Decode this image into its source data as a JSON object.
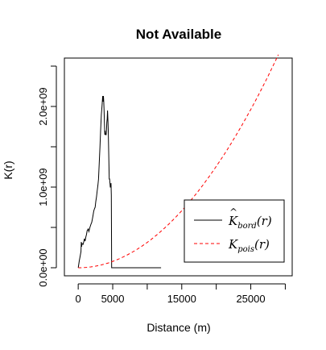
{
  "chart_data": {
    "type": "line",
    "title": "Not Available",
    "xlabel": "Distance (m)",
    "ylabel": "K(r)",
    "xlim": [
      -2000,
      31000
    ],
    "ylim": [
      -100000000,
      2600000000
    ],
    "x_ticks": [
      {
        "value": 0,
        "label": "0"
      },
      {
        "value": 5000,
        "label": "5000"
      },
      {
        "value": 15000,
        "label": "15000"
      },
      {
        "value": 25000,
        "label": "25000"
      }
    ],
    "x_tick_marks": [
      0,
      5000,
      10000,
      15000,
      20000,
      25000,
      30000
    ],
    "y_ticks": [
      {
        "value": 0,
        "label": "0.0e+00"
      },
      {
        "value": 1000000000,
        "label": "1.0e+09"
      },
      {
        "value": 2000000000,
        "label": "2.0e+09"
      }
    ],
    "y_tick_marks": [
      0,
      500000000,
      1000000000,
      1500000000,
      2000000000,
      2500000000
    ],
    "grid": false,
    "legend_position": "bottom-right",
    "series": [
      {
        "name": "K_bord(r)",
        "legend_main": "K",
        "legend_sub": "bord",
        "legend_arg": "(r)",
        "color": "#000000",
        "dash": "solid",
        "x": [
          0,
          150,
          300,
          400,
          450,
          500,
          550,
          700,
          800,
          900,
          1000,
          1100,
          1200,
          1300,
          1450,
          1550,
          1700,
          1850,
          1950,
          2050,
          2150,
          2250,
          2350,
          2450,
          2550,
          2650,
          2750,
          2850,
          2950,
          3050,
          3150,
          3250,
          3350,
          3450,
          3550,
          3600,
          3650,
          3700,
          3750,
          3800,
          3850,
          3900,
          3950,
          4000,
          4050,
          4100,
          4150,
          4200,
          4250,
          4300,
          4350,
          4400,
          4450,
          4500,
          4550,
          4600,
          4650,
          4700,
          4750,
          4800,
          4850,
          4950,
          12000
        ],
        "values": [
          0,
          80000000,
          150000000,
          200000000,
          320000000,
          260000000,
          300000000,
          290000000,
          320000000,
          360000000,
          330000000,
          380000000,
          410000000,
          460000000,
          480000000,
          450000000,
          500000000,
          540000000,
          560000000,
          600000000,
          650000000,
          700000000,
          730000000,
          750000000,
          820000000,
          880000000,
          950000000,
          1020000000,
          1100000000,
          1300000000,
          1500000000,
          1700000000,
          1900000000,
          2000000000,
          2130000000,
          2060000000,
          2130000000,
          2060000000,
          1950000000,
          1800000000,
          1650000000,
          1700000000,
          1650000000,
          1650000000,
          1650000000,
          1700000000,
          1800000000,
          1850000000,
          1950000000,
          1850000000,
          1700000000,
          1500000000,
          1300000000,
          1100000000,
          1100000000,
          1050000000,
          1000000000,
          1000000000,
          1050000000,
          900000000,
          0,
          0,
          0
        ]
      },
      {
        "name": "K_pois(r)",
        "legend_main": "K",
        "legend_sub": "pois",
        "legend_arg": "(r)",
        "color": "#ff0000",
        "dash": "dashed",
        "function": "pi*r^2",
        "x_range": [
          0,
          29000
        ]
      }
    ]
  }
}
